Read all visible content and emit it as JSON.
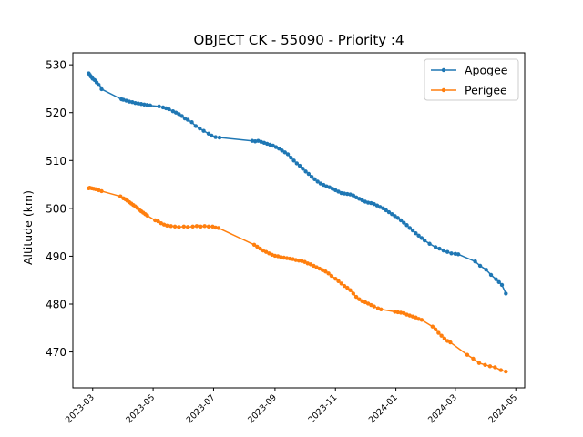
{
  "chart_data": {
    "type": "line",
    "title": "OBJECT CK - 55090 - Priority :4",
    "xlabel": "",
    "ylabel": "Altitude (km)",
    "ylim": [
      462.5,
      532.5
    ],
    "xlim": [
      "2023-02-09",
      "2024-05-10"
    ],
    "y_ticks": [
      470,
      480,
      490,
      500,
      510,
      520,
      530
    ],
    "x_ticks": [
      "2023-03",
      "2023-05",
      "2023-07",
      "2023-09",
      "2023-11",
      "2024-01",
      "2024-03",
      "2024-05"
    ],
    "grid": false,
    "legend": "top-right",
    "series": [
      {
        "name": "Apogee",
        "color": "#1f77b4",
        "marker": "o",
        "points": [
          [
            "2023-02-25",
            528.2
          ],
          [
            "2023-02-26",
            527.9
          ],
          [
            "2023-02-27",
            527.6
          ],
          [
            "2023-02-28",
            527.4
          ],
          [
            "2023-03-01",
            527.1
          ],
          [
            "2023-03-03",
            526.8
          ],
          [
            "2023-03-05",
            526.3
          ],
          [
            "2023-03-07",
            525.8
          ],
          [
            "2023-03-10",
            524.9
          ],
          [
            "2023-03-30",
            522.8
          ],
          [
            "2023-04-01",
            522.7
          ],
          [
            "2023-04-04",
            522.5
          ],
          [
            "2023-04-07",
            522.3
          ],
          [
            "2023-04-10",
            522.2
          ],
          [
            "2023-04-13",
            522.0
          ],
          [
            "2023-04-16",
            521.9
          ],
          [
            "2023-04-19",
            521.8
          ],
          [
            "2023-04-22",
            521.7
          ],
          [
            "2023-04-25",
            521.6
          ],
          [
            "2023-04-28",
            521.5
          ],
          [
            "2023-05-07",
            521.3
          ],
          [
            "2023-05-11",
            521.1
          ],
          [
            "2023-05-14",
            520.9
          ],
          [
            "2023-05-17",
            520.7
          ],
          [
            "2023-05-21",
            520.3
          ],
          [
            "2023-05-24",
            520.0
          ],
          [
            "2023-05-27",
            519.7
          ],
          [
            "2023-05-30",
            519.3
          ],
          [
            "2023-06-02",
            518.8
          ],
          [
            "2023-06-05",
            518.5
          ],
          [
            "2023-06-09",
            518.0
          ],
          [
            "2023-06-13",
            517.2
          ],
          [
            "2023-06-17",
            516.7
          ],
          [
            "2023-06-21",
            516.2
          ],
          [
            "2023-06-26",
            515.6
          ],
          [
            "2023-06-29",
            515.2
          ],
          [
            "2023-07-03",
            514.9
          ],
          [
            "2023-07-07",
            514.8
          ],
          [
            "2023-08-09",
            514.1
          ],
          [
            "2023-08-12",
            514.0
          ],
          [
            "2023-08-15",
            514.1
          ],
          [
            "2023-08-18",
            513.9
          ],
          [
            "2023-08-21",
            513.7
          ],
          [
            "2023-08-24",
            513.5
          ],
          [
            "2023-08-27",
            513.3
          ],
          [
            "2023-08-30",
            513.1
          ],
          [
            "2023-09-02",
            512.8
          ],
          [
            "2023-09-05",
            512.5
          ],
          [
            "2023-09-08",
            512.1
          ],
          [
            "2023-09-11",
            511.7
          ],
          [
            "2023-09-14",
            511.3
          ],
          [
            "2023-09-17",
            510.6
          ],
          [
            "2023-09-20",
            510.0
          ],
          [
            "2023-09-23",
            509.4
          ],
          [
            "2023-09-26",
            508.9
          ],
          [
            "2023-09-29",
            508.3
          ],
          [
            "2023-10-02",
            507.7
          ],
          [
            "2023-10-05",
            507.2
          ],
          [
            "2023-10-08",
            506.6
          ],
          [
            "2023-10-11",
            506.1
          ],
          [
            "2023-10-14",
            505.6
          ],
          [
            "2023-10-17",
            505.2
          ],
          [
            "2023-10-20",
            504.9
          ],
          [
            "2023-10-23",
            504.6
          ],
          [
            "2023-10-26",
            504.4
          ],
          [
            "2023-10-29",
            504.1
          ],
          [
            "2023-11-01",
            503.8
          ],
          [
            "2023-11-04",
            503.5
          ],
          [
            "2023-11-07",
            503.2
          ],
          [
            "2023-11-10",
            503.1
          ],
          [
            "2023-11-13",
            503.0
          ],
          [
            "2023-11-16",
            502.9
          ],
          [
            "2023-11-19",
            502.7
          ],
          [
            "2023-11-22",
            502.3
          ],
          [
            "2023-11-25",
            502.0
          ],
          [
            "2023-11-28",
            501.7
          ],
          [
            "2023-12-01",
            501.4
          ],
          [
            "2023-12-04",
            501.2
          ],
          [
            "2023-12-07",
            501.1
          ],
          [
            "2023-12-10",
            500.9
          ],
          [
            "2023-12-13",
            500.6
          ],
          [
            "2023-12-16",
            500.3
          ],
          [
            "2023-12-19",
            500.0
          ],
          [
            "2023-12-22",
            499.6
          ],
          [
            "2023-12-25",
            499.2
          ],
          [
            "2023-12-28",
            498.8
          ],
          [
            "2023-12-31",
            498.4
          ],
          [
            "2024-01-03",
            498.0
          ],
          [
            "2024-01-06",
            497.5
          ],
          [
            "2024-01-09",
            497.0
          ],
          [
            "2024-01-12",
            496.5
          ],
          [
            "2024-01-15",
            495.9
          ],
          [
            "2024-01-18",
            495.4
          ],
          [
            "2024-01-21",
            494.8
          ],
          [
            "2024-01-24",
            494.3
          ],
          [
            "2024-01-27",
            493.8
          ],
          [
            "2024-01-30",
            493.3
          ],
          [
            "2024-02-04",
            492.6
          ],
          [
            "2024-02-10",
            491.9
          ],
          [
            "2024-02-14",
            491.6
          ],
          [
            "2024-02-18",
            491.2
          ],
          [
            "2024-02-22",
            490.9
          ],
          [
            "2024-02-26",
            490.6
          ],
          [
            "2024-03-01",
            490.5
          ],
          [
            "2024-03-04",
            490.4
          ],
          [
            "2024-03-21",
            488.9
          ],
          [
            "2024-03-26",
            488.0
          ],
          [
            "2024-04-01",
            487.2
          ],
          [
            "2024-04-06",
            486.1
          ],
          [
            "2024-04-11",
            485.2
          ],
          [
            "2024-04-14",
            484.6
          ],
          [
            "2024-04-17",
            484.0
          ],
          [
            "2024-04-21",
            482.2
          ]
        ]
      },
      {
        "name": "Perigee",
        "color": "#ff7f0e",
        "marker": "o",
        "points": [
          [
            "2023-02-25",
            504.2
          ],
          [
            "2023-02-26",
            504.3
          ],
          [
            "2023-02-28",
            504.2
          ],
          [
            "2023-03-02",
            504.1
          ],
          [
            "2023-03-04",
            504.0
          ],
          [
            "2023-03-07",
            503.8
          ],
          [
            "2023-03-10",
            503.6
          ],
          [
            "2023-03-29",
            502.5
          ],
          [
            "2023-04-01",
            502.1
          ],
          [
            "2023-04-03",
            501.9
          ],
          [
            "2023-04-05",
            501.6
          ],
          [
            "2023-04-07",
            501.3
          ],
          [
            "2023-04-09",
            501.0
          ],
          [
            "2023-04-11",
            500.7
          ],
          [
            "2023-04-13",
            500.4
          ],
          [
            "2023-04-15",
            500.1
          ],
          [
            "2023-04-17",
            499.7
          ],
          [
            "2023-04-19",
            499.4
          ],
          [
            "2023-04-21",
            499.1
          ],
          [
            "2023-04-23",
            498.8
          ],
          [
            "2023-04-25",
            498.5
          ],
          [
            "2023-05-03",
            497.5
          ],
          [
            "2023-05-06",
            497.3
          ],
          [
            "2023-05-09",
            496.9
          ],
          [
            "2023-05-12",
            496.6
          ],
          [
            "2023-05-15",
            496.4
          ],
          [
            "2023-05-19",
            496.3
          ],
          [
            "2023-05-23",
            496.2
          ],
          [
            "2023-05-27",
            496.1
          ],
          [
            "2023-06-01",
            496.2
          ],
          [
            "2023-06-05",
            496.1
          ],
          [
            "2023-06-10",
            496.2
          ],
          [
            "2023-06-14",
            496.3
          ],
          [
            "2023-06-18",
            496.2
          ],
          [
            "2023-06-22",
            496.3
          ],
          [
            "2023-06-26",
            496.2
          ],
          [
            "2023-06-30",
            496.2
          ],
          [
            "2023-07-03",
            496.0
          ],
          [
            "2023-07-06",
            495.9
          ],
          [
            "2023-08-11",
            492.4
          ],
          [
            "2023-08-14",
            492.0
          ],
          [
            "2023-08-17",
            491.6
          ],
          [
            "2023-08-20",
            491.2
          ],
          [
            "2023-08-23",
            490.9
          ],
          [
            "2023-08-26",
            490.6
          ],
          [
            "2023-08-29",
            490.3
          ],
          [
            "2023-09-01",
            490.1
          ],
          [
            "2023-09-04",
            490.0
          ],
          [
            "2023-09-07",
            489.8
          ],
          [
            "2023-09-10",
            489.7
          ],
          [
            "2023-09-13",
            489.6
          ],
          [
            "2023-09-16",
            489.5
          ],
          [
            "2023-09-19",
            489.4
          ],
          [
            "2023-09-22",
            489.2
          ],
          [
            "2023-09-25",
            489.1
          ],
          [
            "2023-09-28",
            489.0
          ],
          [
            "2023-10-01",
            488.8
          ],
          [
            "2023-10-04",
            488.5
          ],
          [
            "2023-10-07",
            488.3
          ],
          [
            "2023-10-10",
            488.0
          ],
          [
            "2023-10-13",
            487.7
          ],
          [
            "2023-10-16",
            487.4
          ],
          [
            "2023-10-19",
            487.1
          ],
          [
            "2023-10-22",
            486.8
          ],
          [
            "2023-10-25",
            486.4
          ],
          [
            "2023-10-28",
            485.9
          ],
          [
            "2023-11-01",
            485.3
          ],
          [
            "2023-11-04",
            484.8
          ],
          [
            "2023-11-07",
            484.3
          ],
          [
            "2023-11-10",
            483.8
          ],
          [
            "2023-11-13",
            483.4
          ],
          [
            "2023-11-16",
            482.9
          ],
          [
            "2023-11-19",
            482.2
          ],
          [
            "2023-11-22",
            481.5
          ],
          [
            "2023-11-25",
            481.0
          ],
          [
            "2023-11-28",
            480.6
          ],
          [
            "2023-12-01",
            480.4
          ],
          [
            "2023-12-04",
            480.1
          ],
          [
            "2023-12-07",
            479.8
          ],
          [
            "2023-12-10",
            479.5
          ],
          [
            "2023-12-14",
            479.1
          ],
          [
            "2023-12-17",
            478.9
          ],
          [
            "2023-12-31",
            478.4
          ],
          [
            "2024-01-03",
            478.3
          ],
          [
            "2024-01-06",
            478.2
          ],
          [
            "2024-01-09",
            478.1
          ],
          [
            "2024-01-12",
            477.8
          ],
          [
            "2024-01-15",
            477.6
          ],
          [
            "2024-01-18",
            477.4
          ],
          [
            "2024-01-21",
            477.2
          ],
          [
            "2024-01-24",
            476.9
          ],
          [
            "2024-01-27",
            476.7
          ],
          [
            "2024-02-07",
            475.3
          ],
          [
            "2024-02-10",
            474.7
          ],
          [
            "2024-02-13",
            474.0
          ],
          [
            "2024-02-16",
            473.4
          ],
          [
            "2024-02-19",
            472.8
          ],
          [
            "2024-02-22",
            472.3
          ],
          [
            "2024-02-25",
            472.0
          ],
          [
            "2024-03-13",
            469.4
          ],
          [
            "2024-03-19",
            468.6
          ],
          [
            "2024-03-25",
            467.7
          ],
          [
            "2024-03-31",
            467.3
          ],
          [
            "2024-04-05",
            467.0
          ],
          [
            "2024-04-10",
            466.8
          ],
          [
            "2024-04-16",
            466.2
          ],
          [
            "2024-04-21",
            465.9
          ]
        ]
      }
    ]
  }
}
